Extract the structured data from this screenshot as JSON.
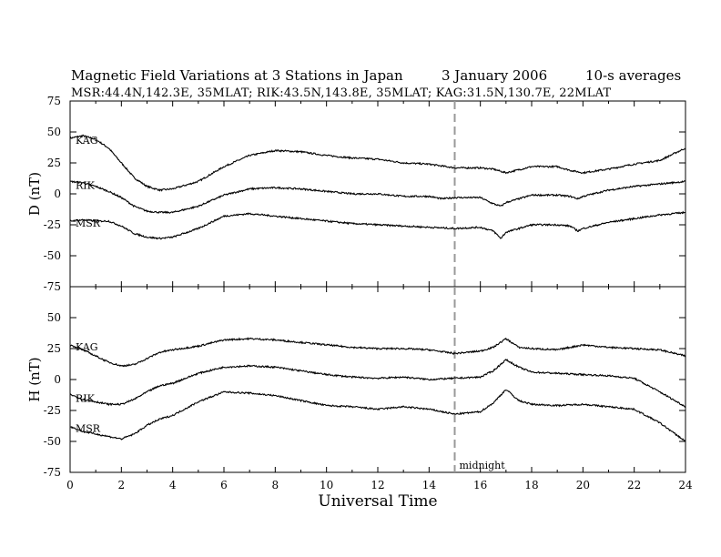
{
  "header": {
    "title": "Magnetic Field Variations at 3 Stations in Japan",
    "date": "3   January 2006",
    "averaging": "10-s averages",
    "stations_line": "MSR:44.4N,142.3E, 35MLAT;  RIK:43.5N,143.8E, 35MLAT;  KAG:31.5N,130.7E, 22MLAT"
  },
  "chart_data": [
    {
      "type": "line",
      "panel": "top",
      "ylabel": "D (nT)",
      "xlabel": "",
      "xlim": [
        0,
        24
      ],
      "ylim": [
        -75,
        75
      ],
      "yticks": [
        -75,
        -50,
        -25,
        0,
        25,
        50,
        75
      ],
      "xticks": [
        0,
        2,
        4,
        6,
        8,
        10,
        12,
        14,
        16,
        18,
        20,
        22,
        24
      ],
      "series": [
        {
          "name": "KAG",
          "x": [
            0,
            0.5,
            1,
            1.5,
            2,
            2.5,
            3,
            3.5,
            4,
            5,
            6,
            7,
            8,
            9,
            10,
            11,
            12,
            13,
            14,
            15,
            16,
            16.5,
            17,
            18,
            19,
            19.5,
            20,
            21,
            22,
            23,
            24
          ],
          "y": [
            45,
            47,
            44,
            37,
            25,
            13,
            6,
            3,
            4,
            10,
            22,
            31,
            35,
            34,
            31,
            29,
            28,
            25,
            24,
            21,
            21,
            20,
            17,
            22,
            22,
            19,
            17,
            20,
            24,
            27,
            37
          ]
        },
        {
          "name": "RIK",
          "x": [
            0,
            0.5,
            1,
            1.5,
            2,
            2.5,
            3,
            3.5,
            4,
            5,
            6,
            7,
            8,
            9,
            10,
            11,
            12,
            13,
            14,
            14.5,
            15,
            16,
            16.5,
            16.8,
            17,
            18,
            19,
            19.5,
            19.8,
            20,
            21,
            22,
            23,
            24
          ],
          "y": [
            10,
            9,
            6,
            2,
            -3,
            -10,
            -14,
            -15,
            -15,
            -10,
            -1,
            4,
            5,
            4,
            2,
            0,
            0,
            -2,
            -2,
            -4,
            -3,
            -3,
            -8,
            -10,
            -7,
            -1,
            -1,
            -2,
            -4,
            -2,
            3,
            6,
            8,
            10
          ]
        },
        {
          "name": "MSR",
          "x": [
            0,
            0.5,
            1,
            1.5,
            2,
            2.5,
            3,
            3.5,
            4,
            5,
            6,
            7,
            8,
            9,
            10,
            11,
            12,
            13,
            14,
            15,
            16,
            16.5,
            16.8,
            17,
            18,
            19,
            19.5,
            19.8,
            20,
            21,
            22,
            23,
            24
          ],
          "y": [
            -22,
            -21,
            -22,
            -22,
            -26,
            -32,
            -35,
            -36,
            -35,
            -28,
            -18,
            -16,
            -18,
            -20,
            -22,
            -24,
            -25,
            -26,
            -27,
            -28,
            -27,
            -30,
            -36,
            -31,
            -25,
            -25,
            -26,
            -30,
            -28,
            -23,
            -20,
            -17,
            -15
          ]
        }
      ]
    },
    {
      "type": "line",
      "panel": "bottom",
      "ylabel": "H (nT)",
      "xlabel": "Universal Time",
      "xlim": [
        0,
        24
      ],
      "ylim": [
        -75,
        75
      ],
      "yticks": [
        -75,
        -50,
        -25,
        0,
        25,
        50,
        75
      ],
      "xticks": [
        0,
        2,
        4,
        6,
        8,
        10,
        12,
        14,
        16,
        18,
        20,
        22,
        24
      ],
      "series": [
        {
          "name": "KAG",
          "x": [
            0,
            0.5,
            1,
            1.5,
            2,
            2.5,
            3,
            3.5,
            4,
            5,
            6,
            7,
            8,
            9,
            10,
            11,
            12,
            13,
            14,
            15,
            16,
            16.5,
            17,
            17.5,
            18,
            19,
            20,
            21,
            22,
            23,
            24
          ],
          "y": [
            28,
            24,
            19,
            14,
            11,
            12,
            17,
            22,
            24,
            27,
            32,
            33,
            32,
            30,
            28,
            26,
            25,
            25,
            24,
            21,
            23,
            26,
            33,
            26,
            25,
            24,
            28,
            26,
            25,
            24,
            19
          ]
        },
        {
          "name": "RIK",
          "x": [
            0,
            0.5,
            1,
            1.5,
            2,
            2.5,
            3,
            3.5,
            4,
            5,
            6,
            7,
            8,
            9,
            10,
            11,
            12,
            13,
            14,
            15,
            16,
            16.5,
            17,
            17.5,
            18,
            19,
            20,
            21,
            22,
            23,
            24
          ],
          "y": [
            -12,
            -16,
            -18,
            -20,
            -20,
            -16,
            -10,
            -5,
            -3,
            5,
            10,
            11,
            10,
            7,
            4,
            2,
            1,
            2,
            0,
            1,
            2,
            7,
            16,
            10,
            6,
            5,
            4,
            3,
            1,
            -10,
            -22
          ]
        },
        {
          "name": "MSR",
          "x": [
            0,
            0.5,
            1,
            1.5,
            2,
            2.5,
            3,
            3.5,
            4,
            5,
            6,
            7,
            8,
            9,
            10,
            11,
            12,
            13,
            14,
            15,
            16,
            16.5,
            17,
            17.5,
            18,
            19,
            20,
            21,
            22,
            23,
            24
          ],
          "y": [
            -38,
            -42,
            -44,
            -46,
            -48,
            -44,
            -37,
            -32,
            -29,
            -18,
            -10,
            -11,
            -13,
            -17,
            -21,
            -22,
            -24,
            -22,
            -24,
            -28,
            -26,
            -19,
            -8,
            -17,
            -20,
            -21,
            -20,
            -22,
            -24,
            -35,
            -50
          ]
        }
      ]
    }
  ],
  "annotations": {
    "midnight_label": "midnight",
    "midnight_x": 15
  }
}
